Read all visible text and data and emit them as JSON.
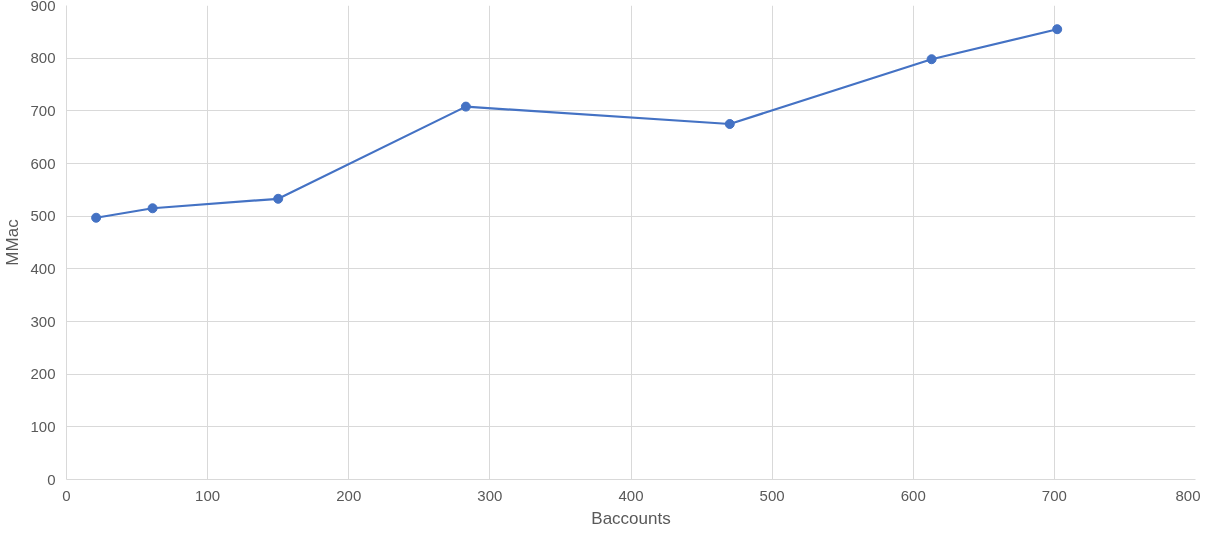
{
  "chart_data": {
    "type": "line",
    "xlabel": "Baccounts",
    "ylabel": "MMac",
    "x": [
      21,
      61,
      150,
      283,
      470,
      613,
      702
    ],
    "series": [
      {
        "color": "#4472c4",
        "values": [
          497,
          515,
          533,
          708,
          675,
          798,
          855
        ]
      }
    ],
    "xlim": [
      0,
      800
    ],
    "xticks": [
      0,
      100,
      200,
      300,
      400,
      500,
      600,
      700,
      800
    ],
    "ylim": [
      0,
      900
    ],
    "yticks": [
      0,
      100,
      200,
      300,
      400,
      500,
      600,
      700,
      800,
      900
    ],
    "grid": true,
    "marker": "circle",
    "line_style": "solid"
  }
}
